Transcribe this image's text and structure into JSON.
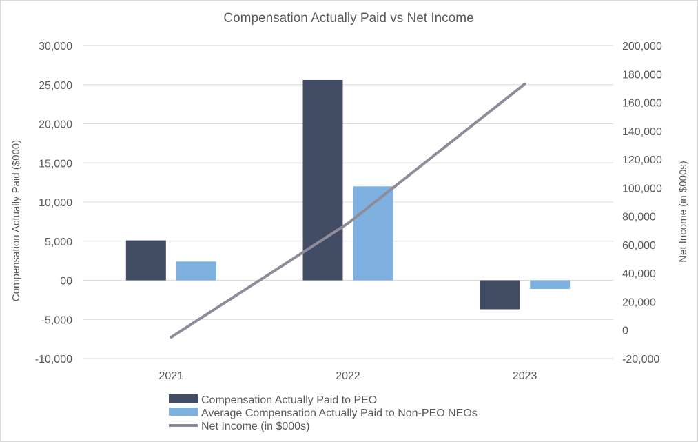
{
  "chart_data": {
    "type": "bar+line",
    "title": "Compensation Actually Paid vs Net Income",
    "categories": [
      "2021",
      "2022",
      "2023"
    ],
    "left_axis": {
      "label": "Compensation Actually Paid ($000)",
      "min": -10000,
      "max": 30000,
      "step": 5000,
      "ticks": [
        "-10,000",
        "-5,000",
        "00",
        "5,000",
        "10,000",
        "15,000",
        "20,000",
        "25,000",
        "30,000"
      ]
    },
    "right_axis": {
      "label": "Net Income (in $000s)",
      "min": -20000,
      "max": 200000,
      "step": 20000,
      "ticks": [
        "-20,000",
        "0",
        "20,000",
        "40,000",
        "60,000",
        "80,000",
        "100,000",
        "120,000",
        "140,000",
        "160,000",
        "180,000",
        "200,000"
      ]
    },
    "series": [
      {
        "name": "Compensation Actually Paid to PEO",
        "kind": "bar",
        "axis": "left",
        "color": "#434c65",
        "values": [
          5100,
          25600,
          -3700
        ]
      },
      {
        "name": "Average Compensation Actually Paid to Non-PEO NEOs",
        "kind": "bar",
        "axis": "left",
        "color": "#7eb1e0",
        "values": [
          2400,
          12000,
          -1100
        ]
      },
      {
        "name": "Net Income (in $000s)",
        "kind": "line",
        "axis": "right",
        "color": "#8e8c9a",
        "values": [
          -5000,
          75000,
          173000
        ]
      }
    ],
    "grid": true,
    "legend": "bottom"
  }
}
